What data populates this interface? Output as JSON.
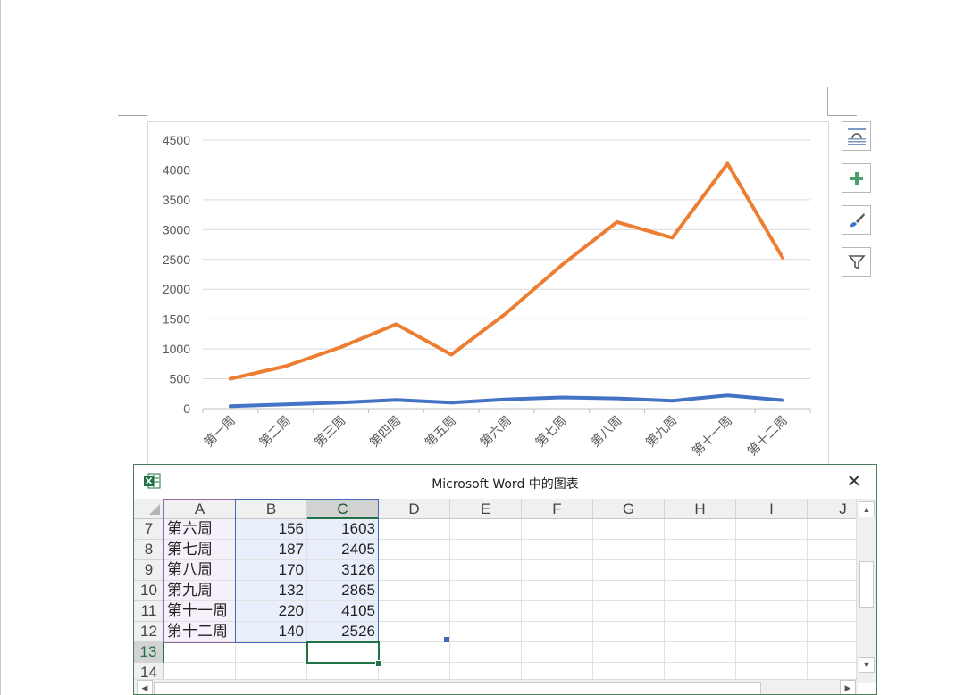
{
  "chart_data": {
    "type": "line",
    "categories": [
      "第一周",
      "第二周",
      "第三周",
      "第四周",
      "第五周",
      "第六周",
      "第七周",
      "第八周",
      "第九周",
      "第十一周",
      "第十二周"
    ],
    "series": [
      {
        "values": [
          40,
          70,
          100,
          145,
          100,
          156,
          187,
          170,
          132,
          220,
          140
        ],
        "color": "#4472c4"
      },
      {
        "values": [
          500,
          710,
          1030,
          1415,
          905,
          1603,
          2405,
          3126,
          2865,
          4105,
          2526
        ],
        "color": "#ed7d31"
      }
    ],
    "yticks": [
      "4500",
      "4000",
      "3500",
      "3000",
      "2500",
      "2000",
      "1500",
      "1000",
      "500",
      "0"
    ],
    "ylim": [
      0,
      4500
    ],
    "grid": true
  },
  "chart_buttons": [
    {
      "name": "layout-options-icon"
    },
    {
      "name": "chart-elements-icon"
    },
    {
      "name": "chart-styles-icon"
    },
    {
      "name": "chart-filters-icon"
    }
  ],
  "excel": {
    "title": "Microsoft Word 中的图表",
    "close_glyph": "✕",
    "columns": [
      "A",
      "B",
      "C",
      "D",
      "E",
      "F",
      "G",
      "H",
      "I",
      "J"
    ],
    "rows": [
      {
        "num": "7",
        "a": "第六周",
        "b": "156",
        "c": "1603"
      },
      {
        "num": "8",
        "a": "第七周",
        "b": "187",
        "c": "2405"
      },
      {
        "num": "9",
        "a": "第八周",
        "b": "170",
        "c": "3126"
      },
      {
        "num": "10",
        "a": "第九周",
        "b": "132",
        "c": "2865"
      },
      {
        "num": "11",
        "a": "第十一周",
        "b": "220",
        "c": "4105"
      },
      {
        "num": "12",
        "a": "第十二周",
        "b": "140",
        "c": "2526"
      },
      {
        "num": "13",
        "a": "",
        "b": "",
        "c": ""
      },
      {
        "num": "14",
        "a": "",
        "b": "",
        "c": ""
      }
    ],
    "colors": {
      "accent": "#217346",
      "selection_fill": "#e8eefa"
    }
  }
}
